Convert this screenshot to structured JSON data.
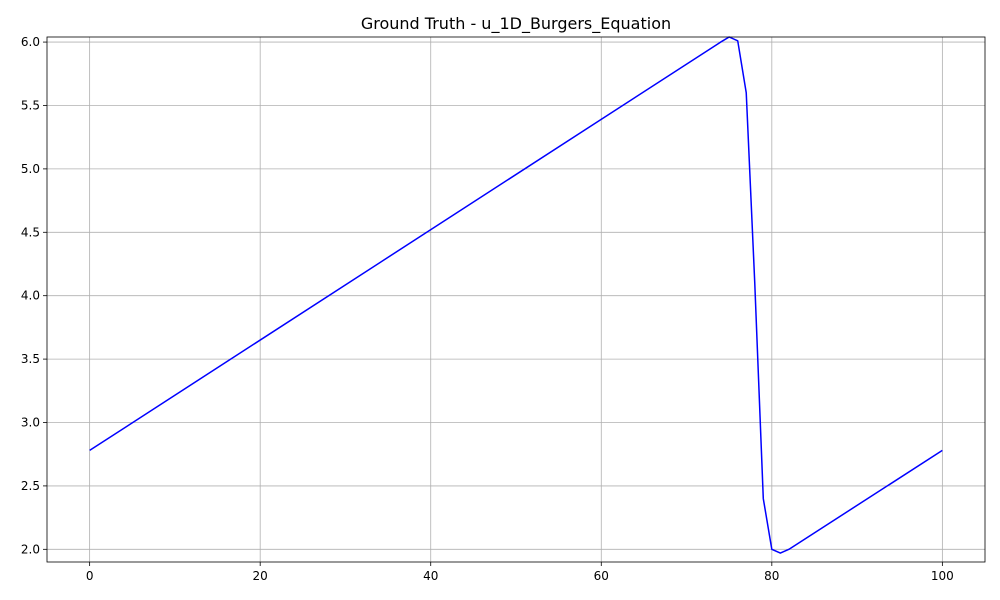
{
  "chart_data": {
    "type": "line",
    "title": "Ground Truth - u_1D_Burgers_Equation",
    "xlabel": "",
    "ylabel": "",
    "xlim": [
      -5,
      105
    ],
    "ylim": [
      1.9,
      6.04
    ],
    "xticks": [
      0,
      20,
      40,
      60,
      80,
      100
    ],
    "xtick_labels": [
      "0",
      "20",
      "40",
      "60",
      "80",
      "100"
    ],
    "yticks": [
      2.0,
      2.5,
      3.0,
      3.5,
      4.0,
      4.5,
      5.0,
      5.5,
      6.0
    ],
    "ytick_labels": [
      "2.0",
      "2.5",
      "3.0",
      "3.5",
      "4.0",
      "4.5",
      "5.0",
      "5.5",
      "6.0"
    ],
    "grid": true,
    "series": [
      {
        "color": "#0000ff",
        "x": [
          0,
          74,
          75,
          76,
          77,
          78,
          79,
          80,
          81,
          82,
          100
        ],
        "y": [
          2.78,
          6.0,
          6.04,
          6.01,
          5.6,
          4.1,
          2.4,
          2.0,
          1.97,
          2.0,
          2.78
        ]
      }
    ]
  }
}
